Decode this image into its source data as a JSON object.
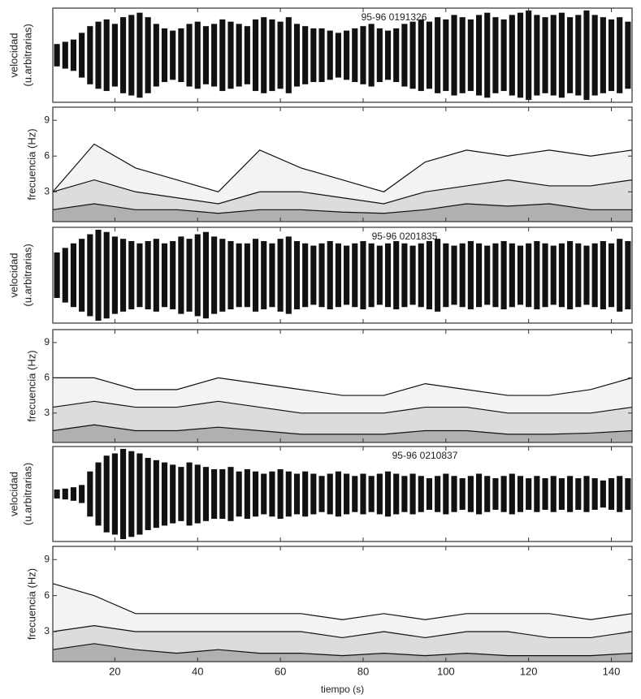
{
  "chart_data": [
    {
      "type": "seismogram",
      "annotation": "95-96 0191326",
      "ylabel": [
        "velocidad",
        "(u.arbitrarias)"
      ],
      "xlim": [
        5,
        145
      ],
      "ylim": [
        -1,
        1
      ],
      "color": "#111111",
      "x": [
        6,
        8,
        10,
        12,
        14,
        16,
        18,
        20,
        22,
        24,
        26,
        28,
        30,
        32,
        34,
        36,
        38,
        40,
        42,
        44,
        46,
        48,
        50,
        52,
        54,
        56,
        58,
        60,
        62,
        64,
        66,
        68,
        70,
        72,
        74,
        76,
        78,
        80,
        82,
        84,
        86,
        88,
        90,
        92,
        94,
        96,
        98,
        100,
        102,
        104,
        106,
        108,
        110,
        112,
        114,
        116,
        118,
        120,
        122,
        124,
        126,
        128,
        130,
        132,
        134,
        136,
        138,
        140,
        142,
        144
      ],
      "values": [
        0.25,
        0.3,
        0.35,
        0.5,
        0.65,
        0.75,
        0.8,
        0.7,
        0.85,
        0.9,
        0.95,
        0.85,
        0.7,
        0.6,
        0.55,
        0.6,
        0.7,
        0.75,
        0.65,
        0.7,
        0.8,
        0.75,
        0.7,
        0.65,
        0.8,
        0.85,
        0.8,
        0.75,
        0.85,
        0.7,
        0.65,
        0.6,
        0.6,
        0.55,
        0.5,
        0.55,
        0.6,
        0.65,
        0.7,
        0.6,
        0.55,
        0.6,
        0.7,
        0.75,
        0.8,
        0.75,
        0.85,
        0.8,
        0.9,
        0.85,
        0.8,
        0.9,
        0.95,
        0.85,
        0.8,
        0.9,
        0.95,
        1.0,
        0.9,
        0.85,
        0.9,
        0.95,
        0.85,
        0.9,
        1.0,
        0.9,
        0.85,
        0.8,
        0.85,
        0.75
      ]
    },
    {
      "type": "contour",
      "ylabel": "frecuencia (Hz)",
      "xlim": [
        5,
        145
      ],
      "ylim": [
        0.5,
        10.1
      ],
      "yticks": [
        3,
        6,
        9
      ],
      "x": [
        5,
        15,
        25,
        35,
        45,
        55,
        65,
        75,
        85,
        95,
        105,
        115,
        125,
        135,
        145
      ],
      "series": [
        {
          "color": "#f3f3f3",
          "values": [
            3,
            7,
            5,
            4,
            3,
            6.5,
            5,
            4,
            3,
            5.5,
            6.5,
            6,
            6.5,
            6,
            6.5
          ]
        },
        {
          "color": "#dcdcdc",
          "values": [
            3,
            4,
            3,
            2.5,
            2,
            3,
            3,
            2.5,
            2,
            3,
            3.5,
            4,
            3.5,
            3.5,
            4
          ]
        },
        {
          "color": "#b0b0b0",
          "values": [
            1.5,
            2,
            1.5,
            1.5,
            1.2,
            1.5,
            1.5,
            1.3,
            1.2,
            1.5,
            2,
            1.8,
            2,
            1.5,
            1.5
          ]
        }
      ]
    },
    {
      "type": "seismogram",
      "annotation": "95-96 0201835",
      "ylabel": [
        "velocidad",
        "(u.arbitrarias)"
      ],
      "xlim": [
        5,
        145
      ],
      "ylim": [
        -1,
        1
      ],
      "color": "#111111",
      "x": [
        6,
        8,
        10,
        12,
        14,
        16,
        18,
        20,
        22,
        24,
        26,
        28,
        30,
        32,
        34,
        36,
        38,
        40,
        42,
        44,
        46,
        48,
        50,
        52,
        54,
        56,
        58,
        60,
        62,
        64,
        66,
        68,
        70,
        72,
        74,
        76,
        78,
        80,
        82,
        84,
        86,
        88,
        90,
        92,
        94,
        96,
        98,
        100,
        102,
        104,
        106,
        108,
        110,
        112,
        114,
        116,
        118,
        120,
        122,
        124,
        126,
        128,
        130,
        132,
        134,
        136,
        138,
        140,
        142,
        144
      ],
      "values": [
        0.5,
        0.6,
        0.7,
        0.8,
        0.9,
        1.0,
        0.95,
        0.85,
        0.8,
        0.75,
        0.7,
        0.75,
        0.8,
        0.7,
        0.75,
        0.85,
        0.8,
        0.9,
        0.95,
        0.85,
        0.8,
        0.75,
        0.7,
        0.7,
        0.8,
        0.75,
        0.7,
        0.8,
        0.85,
        0.75,
        0.7,
        0.65,
        0.7,
        0.75,
        0.7,
        0.65,
        0.7,
        0.75,
        0.7,
        0.65,
        0.7,
        0.75,
        0.7,
        0.65,
        0.7,
        0.75,
        0.8,
        0.7,
        0.65,
        0.7,
        0.75,
        0.7,
        0.65,
        0.7,
        0.75,
        0.7,
        0.65,
        0.7,
        0.75,
        0.7,
        0.65,
        0.7,
        0.75,
        0.7,
        0.65,
        0.7,
        0.75,
        0.7,
        0.8,
        0.75
      ]
    },
    {
      "type": "contour",
      "ylabel": "frecuencia (Hz)",
      "xlim": [
        5,
        145
      ],
      "ylim": [
        0.5,
        10.1
      ],
      "yticks": [
        3,
        6,
        9
      ],
      "x": [
        5,
        15,
        25,
        35,
        45,
        55,
        65,
        75,
        85,
        95,
        105,
        115,
        125,
        135,
        145
      ],
      "series": [
        {
          "color": "#f3f3f3",
          "values": [
            6,
            6,
            5,
            5,
            6,
            5.5,
            5,
            4.5,
            4.5,
            5.5,
            5,
            4.5,
            4.5,
            5,
            6
          ]
        },
        {
          "color": "#dcdcdc",
          "values": [
            3.5,
            4,
            3.5,
            3.5,
            4,
            3.5,
            3,
            3,
            3,
            3.5,
            3.5,
            3,
            3,
            3,
            3.5
          ]
        },
        {
          "color": "#b0b0b0",
          "values": [
            1.5,
            2,
            1.5,
            1.5,
            1.8,
            1.5,
            1.2,
            1.2,
            1.2,
            1.5,
            1.5,
            1.2,
            1.2,
            1.3,
            1.5
          ]
        }
      ]
    },
    {
      "type": "seismogram",
      "annotation": "95-96 0210837",
      "ylabel": [
        "velocidad",
        "(u.arbitrarias)"
      ],
      "xlim": [
        5,
        145
      ],
      "ylim": [
        -1,
        1
      ],
      "color": "#111111",
      "x": [
        6,
        8,
        10,
        12,
        14,
        16,
        18,
        20,
        22,
        24,
        26,
        28,
        30,
        32,
        34,
        36,
        38,
        40,
        42,
        44,
        46,
        48,
        50,
        52,
        54,
        56,
        58,
        60,
        62,
        64,
        66,
        68,
        70,
        72,
        74,
        76,
        78,
        80,
        82,
        84,
        86,
        88,
        90,
        92,
        94,
        96,
        98,
        100,
        102,
        104,
        106,
        108,
        110,
        112,
        114,
        116,
        118,
        120,
        122,
        124,
        126,
        128,
        130,
        132,
        134,
        136,
        138,
        140,
        142,
        144
      ],
      "values": [
        0.1,
        0.12,
        0.15,
        0.2,
        0.5,
        0.7,
        0.85,
        0.9,
        1.0,
        0.95,
        0.9,
        0.8,
        0.75,
        0.7,
        0.65,
        0.6,
        0.7,
        0.65,
        0.6,
        0.55,
        0.55,
        0.6,
        0.5,
        0.55,
        0.5,
        0.45,
        0.5,
        0.55,
        0.5,
        0.45,
        0.5,
        0.45,
        0.4,
        0.45,
        0.5,
        0.45,
        0.4,
        0.45,
        0.4,
        0.45,
        0.5,
        0.45,
        0.4,
        0.45,
        0.4,
        0.35,
        0.4,
        0.45,
        0.4,
        0.35,
        0.4,
        0.45,
        0.4,
        0.35,
        0.4,
        0.45,
        0.4,
        0.35,
        0.4,
        0.35,
        0.4,
        0.35,
        0.4,
        0.35,
        0.4,
        0.35,
        0.3,
        0.35,
        0.4,
        0.35
      ]
    },
    {
      "type": "contour",
      "ylabel": "frecuencia (Hz)",
      "xlabel": "tiempo (s)",
      "xlim": [
        5,
        145
      ],
      "ylim": [
        0.5,
        10.1
      ],
      "yticks": [
        3,
        6,
        9
      ],
      "xticks": [
        20,
        40,
        60,
        80,
        100,
        120,
        140
      ],
      "x": [
        5,
        15,
        25,
        35,
        45,
        55,
        65,
        75,
        85,
        95,
        105,
        115,
        125,
        135,
        145
      ],
      "series": [
        {
          "color": "#f3f3f3",
          "values": [
            7,
            6,
            4.5,
            4.5,
            4.5,
            4.5,
            4.5,
            4,
            4.5,
            4,
            4.5,
            4.5,
            4.5,
            4,
            4.5
          ]
        },
        {
          "color": "#dcdcdc",
          "values": [
            3,
            3.5,
            3,
            3,
            3,
            3,
            3,
            2.5,
            3,
            2.5,
            3,
            3,
            2.5,
            2.5,
            3
          ]
        },
        {
          "color": "#b0b0b0",
          "values": [
            1.5,
            2,
            1.5,
            1.2,
            1.5,
            1.2,
            1.2,
            1,
            1.2,
            1,
            1.2,
            1,
            1,
            1,
            1.2
          ]
        }
      ]
    }
  ]
}
